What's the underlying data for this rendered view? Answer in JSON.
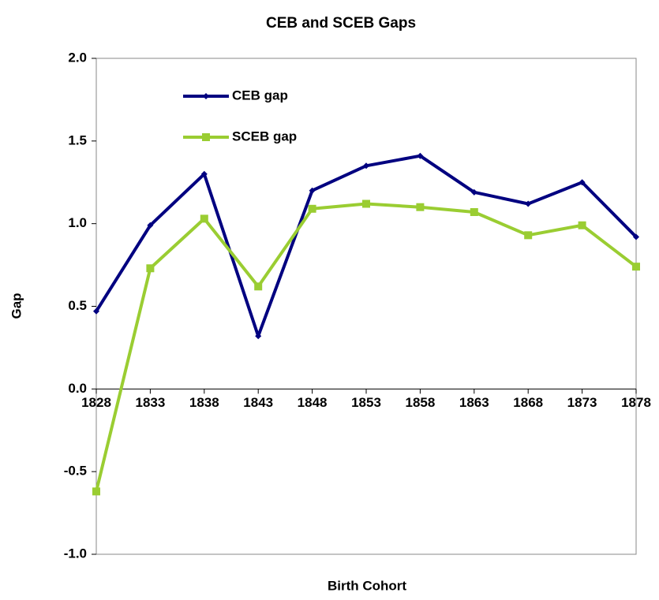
{
  "chart_data": {
    "type": "line",
    "title": "CEB and SCEB Gaps",
    "x_label": "Birth Cohort",
    "y_label": "Gap",
    "x": [
      1828,
      1833,
      1838,
      1843,
      1848,
      1853,
      1858,
      1863,
      1868,
      1873,
      1878
    ],
    "xlim": [
      1828,
      1878
    ],
    "xticks": [
      1828,
      1833,
      1838,
      1843,
      1848,
      1853,
      1858,
      1863,
      1868,
      1873,
      1878
    ],
    "ylim": [
      -1.0,
      2.0
    ],
    "yticks": [
      {
        "value": -1.0,
        "label": "-1.0"
      },
      {
        "value": -0.5,
        "label": "-0.5"
      },
      {
        "value": 0,
        "label": "0.0"
      },
      {
        "value": 0.5,
        "label": "0.5"
      },
      {
        "value": 1.0,
        "label": "1.0"
      },
      {
        "value": 1.5,
        "label": "1.5"
      },
      {
        "value": 2.0,
        "label": "2.0"
      }
    ],
    "grid": false,
    "legend": "upper-left",
    "series": [
      {
        "name": "CEB gap",
        "color": "#000080",
        "marker": "diamond",
        "values": [
          0.47,
          0.99,
          1.3,
          0.32,
          1.2,
          1.35,
          1.41,
          1.19,
          1.12,
          1.25,
          0.92
        ]
      },
      {
        "name": "SCEB gap",
        "color": "#9acd32",
        "marker": "square",
        "values": [
          -0.62,
          0.73,
          1.03,
          0.62,
          1.09,
          1.12,
          1.1,
          1.07,
          0.93,
          0.99,
          0.74
        ]
      }
    ]
  }
}
